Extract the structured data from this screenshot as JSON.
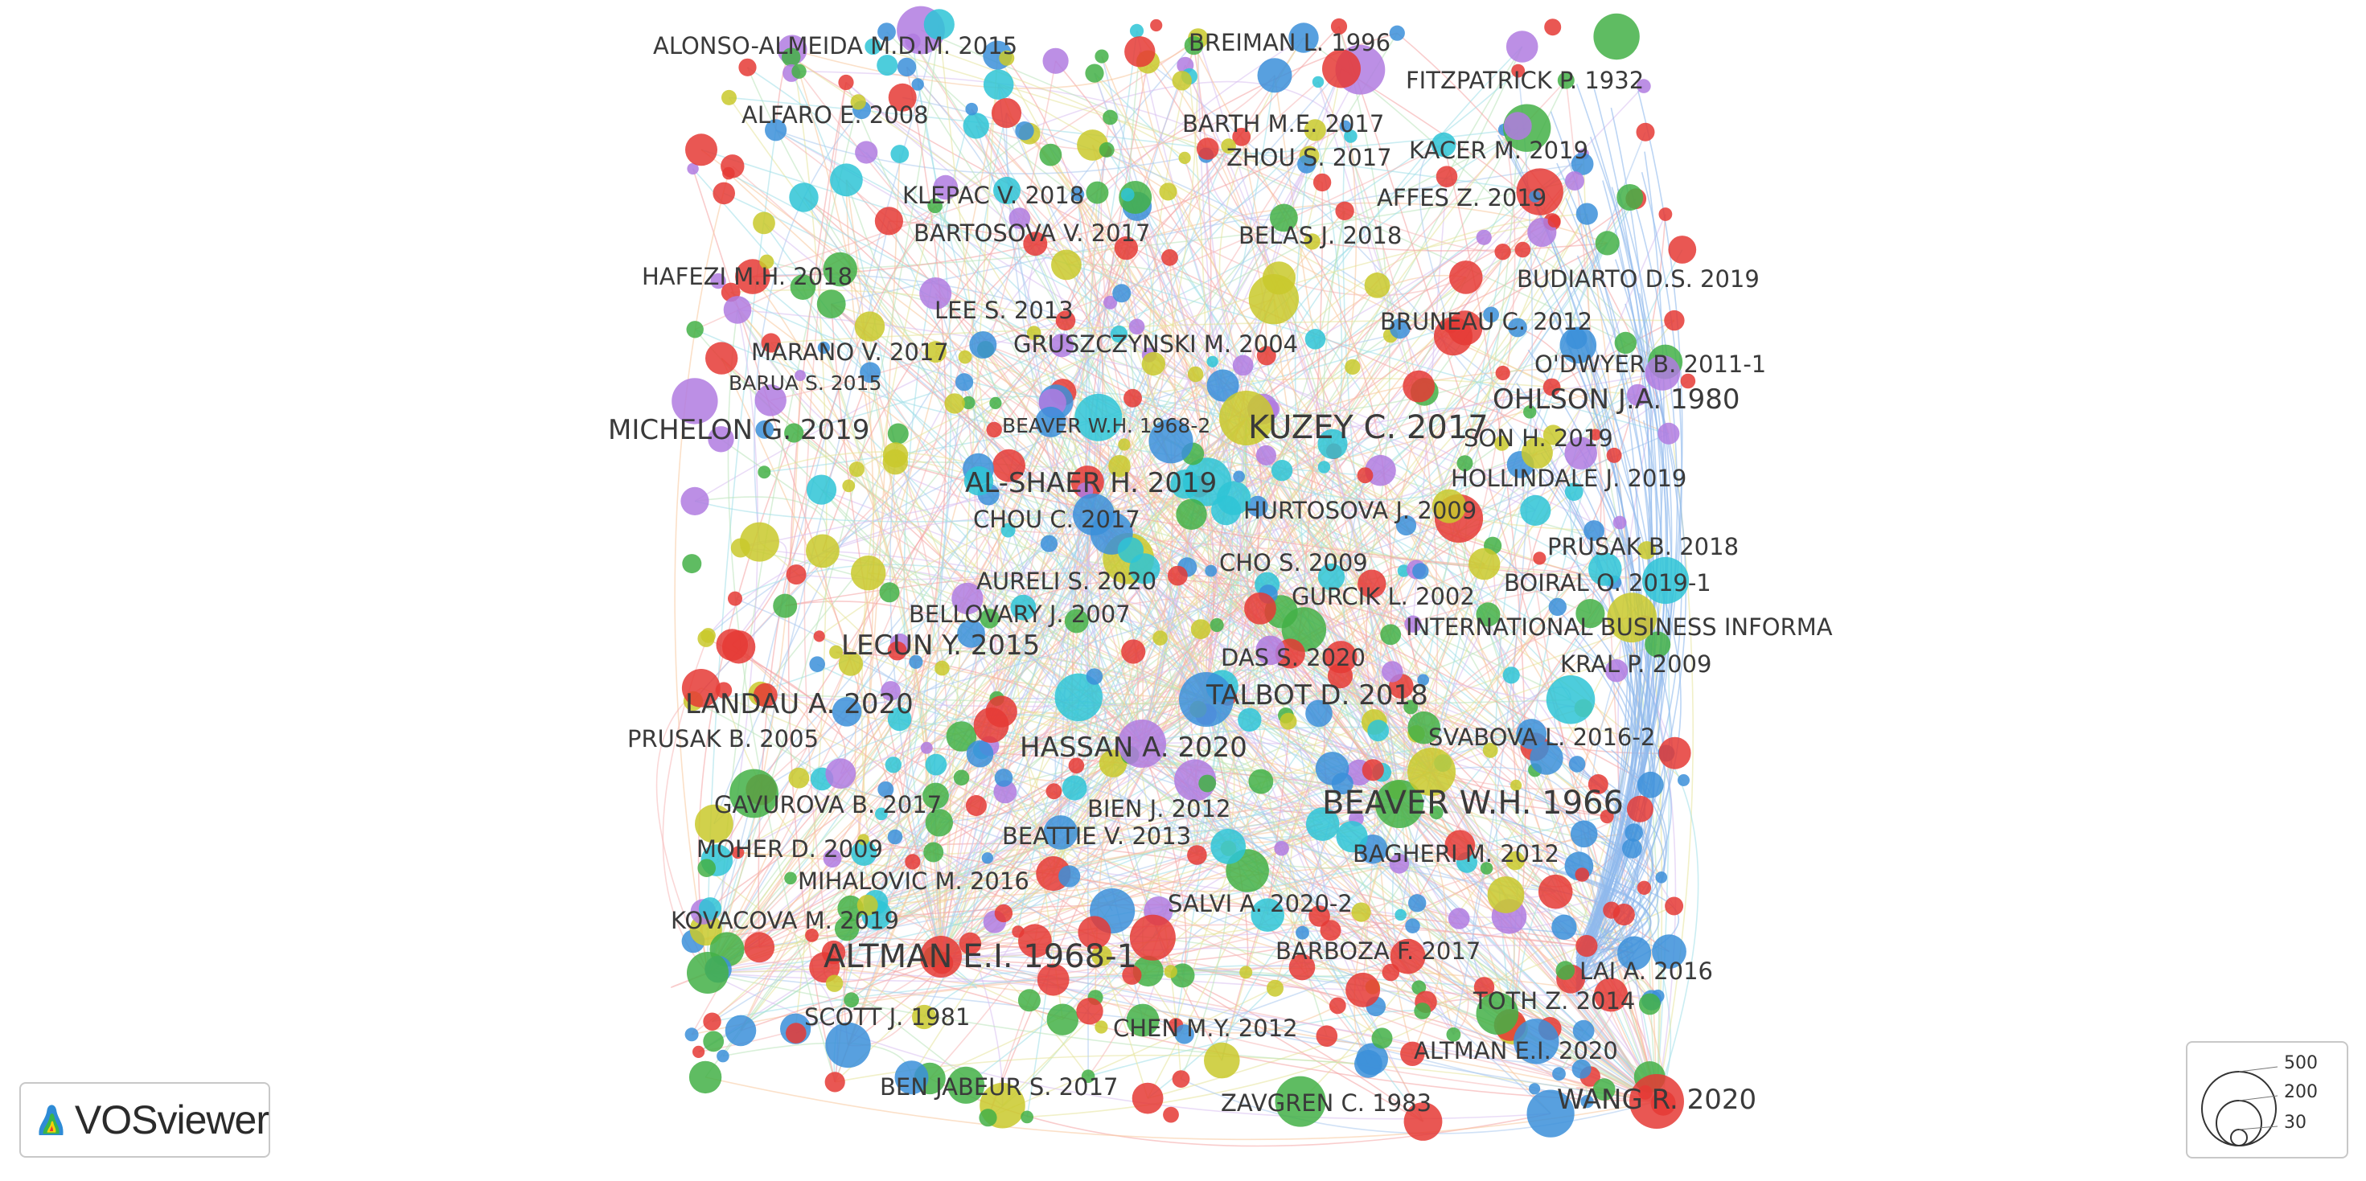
{
  "app": {
    "name": "VOSviewer"
  },
  "colors": {
    "clusters": [
      "#e53935",
      "#43b047",
      "#c9c92c",
      "#3b8fd9",
      "#b07be0",
      "#2ec4d6",
      "#f58a2a",
      "#a8746a",
      "#f48fb1"
    ]
  },
  "legend": {
    "values": [
      "500",
      "200",
      "30"
    ]
  },
  "labels": [
    {
      "text": "ALONSO-ALMEIDA M.D.M. 2015",
      "size": "m"
    },
    {
      "text": "BREIMAN L. 1996",
      "size": "m"
    },
    {
      "text": "FITZPATRICK P. 1932",
      "size": "m"
    },
    {
      "text": "ALFARO E. 2008",
      "size": "m"
    },
    {
      "text": "BARTH M.E. 2017",
      "size": "m"
    },
    {
      "text": "ZHOU S. 2017",
      "size": "m"
    },
    {
      "text": "KACER M. 2019",
      "size": "m"
    },
    {
      "text": "KLEPAC V. 2018",
      "size": "m"
    },
    {
      "text": "AFFES Z. 2019",
      "size": "m"
    },
    {
      "text": "BARTOSOVA V. 2017",
      "size": "m"
    },
    {
      "text": "BELAS J. 2018",
      "size": "m"
    },
    {
      "text": "HAFEZI M.H. 2018",
      "size": "m"
    },
    {
      "text": "BUDIARTO D.S. 2019",
      "size": "m"
    },
    {
      "text": "LEE S. 2013",
      "size": "m"
    },
    {
      "text": "BRUNEAU C. 2012",
      "size": "m"
    },
    {
      "text": "MARANO V. 2017",
      "size": "m"
    },
    {
      "text": "GRUSZCZYNSKI M. 2004",
      "size": "m"
    },
    {
      "text": "O'DWYER B. 2011-1",
      "size": "m"
    },
    {
      "text": "BARUA S. 2015",
      "size": "s"
    },
    {
      "text": "OHLSON J.A. 1980",
      "size": "l"
    },
    {
      "text": "MICHELON G. 2019",
      "size": "l"
    },
    {
      "text": "BEAVER W.H. 1968-2",
      "size": "s"
    },
    {
      "text": "KUZEY C. 2017",
      "size": "xl"
    },
    {
      "text": "SON H. 2019",
      "size": "m"
    },
    {
      "text": "HOLLINDALE J. 2019",
      "size": "m"
    },
    {
      "text": "AL-SHAER H. 2019",
      "size": "l"
    },
    {
      "text": "HURTOSOVA J. 2009",
      "size": "m"
    },
    {
      "text": "CHOU C. 2017",
      "size": "m"
    },
    {
      "text": "PRUSAK B. 2018",
      "size": "m"
    },
    {
      "text": "CHO S. 2009",
      "size": "m"
    },
    {
      "text": "AURELI S. 2020",
      "size": "m"
    },
    {
      "text": "BOIRAL O. 2019-1",
      "size": "m"
    },
    {
      "text": "GURCIK L. 2002",
      "size": "m"
    },
    {
      "text": "BELLOVARY J. 2007",
      "size": "m"
    },
    {
      "text": "INTERNATIONAL BUSINESS INFORMA",
      "size": "m"
    },
    {
      "text": "LECUN Y. 2015",
      "size": "l"
    },
    {
      "text": "DAS S. 2020",
      "size": "m"
    },
    {
      "text": "KRAL P. 2009",
      "size": "m"
    },
    {
      "text": "LANDAU A. 2020",
      "size": "l"
    },
    {
      "text": "TALBOT D. 2018",
      "size": "l"
    },
    {
      "text": "PRUSAK B. 2005",
      "size": "m"
    },
    {
      "text": "SVABOVA L. 2016-2",
      "size": "m"
    },
    {
      "text": "HASSAN A. 2020",
      "size": "l"
    },
    {
      "text": "GAVUROVA B. 2017",
      "size": "m"
    },
    {
      "text": "BIEN J. 2012",
      "size": "m"
    },
    {
      "text": "BEAVER W.H. 1966",
      "size": "xl"
    },
    {
      "text": "BEATTIE V. 2013",
      "size": "m"
    },
    {
      "text": "MOHER D. 2009",
      "size": "m"
    },
    {
      "text": "BAGHERI M. 2012",
      "size": "m"
    },
    {
      "text": "MIHALOVIC M. 2016",
      "size": "m"
    },
    {
      "text": "SALVI A. 2020-2",
      "size": "m"
    },
    {
      "text": "KOVACOVA M. 2019",
      "size": "m"
    },
    {
      "text": "ALTMAN E.I. 1968-1",
      "size": "xl"
    },
    {
      "text": "BARBOZA F. 2017",
      "size": "m"
    },
    {
      "text": "LAI A. 2016",
      "size": "m"
    },
    {
      "text": "TOTH Z. 2014",
      "size": "m"
    },
    {
      "text": "SCOTT J. 1981",
      "size": "m"
    },
    {
      "text": "CHEN M.Y. 2012",
      "size": "m"
    },
    {
      "text": "ALTMAN E.I. 2020",
      "size": "m"
    },
    {
      "text": "BEN JABEUR S. 2017",
      "size": "m"
    },
    {
      "text": "ZAVGREN C. 1983",
      "size": "m"
    },
    {
      "text": "WANG R. 2020",
      "size": "l"
    }
  ]
}
